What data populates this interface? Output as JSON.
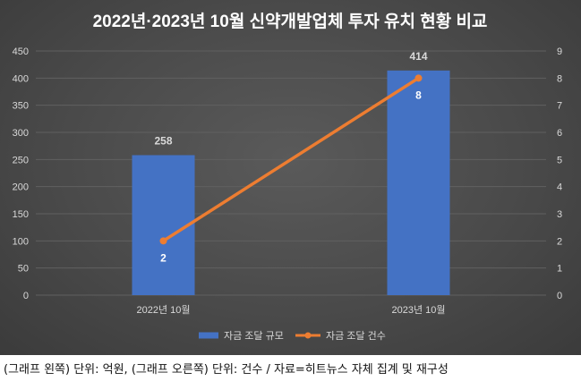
{
  "caption": "(그래프 왼쪽) 단위: 억원, (그래프 오른쪽) 단위: 건수 / 자료=히트뉴스 자체 집계 및 재구성",
  "colors": {
    "background": "#4a4a4a",
    "bar": "#4472c4",
    "line": "#ed7d31",
    "text": "#d9d9d9",
    "title": "#ffffff",
    "grid": "#606060"
  },
  "chart_data": {
    "type": "bar",
    "title": "2022년·2023년 10월 신약개발업체 투자 유치 현황 비교",
    "categories": [
      "2022년 10월",
      "2023년 10월"
    ],
    "ylim": [
      0,
      450
    ],
    "y_ticks": [
      0,
      50,
      100,
      150,
      200,
      250,
      300,
      350,
      400,
      450
    ],
    "y2lim": [
      0,
      9
    ],
    "y2_ticks": [
      0,
      1,
      2,
      3,
      4,
      5,
      6,
      7,
      8,
      9
    ],
    "grid": true,
    "legend_position": "bottom",
    "series": [
      {
        "name": "자금 조달 규모",
        "type": "bar",
        "axis": "left",
        "values": [
          258,
          414
        ],
        "labels": [
          "258",
          "414"
        ]
      },
      {
        "name": "자금 조달 건수",
        "type": "line",
        "axis": "right",
        "values": [
          2,
          8
        ],
        "labels": [
          "2",
          "8"
        ]
      }
    ]
  }
}
